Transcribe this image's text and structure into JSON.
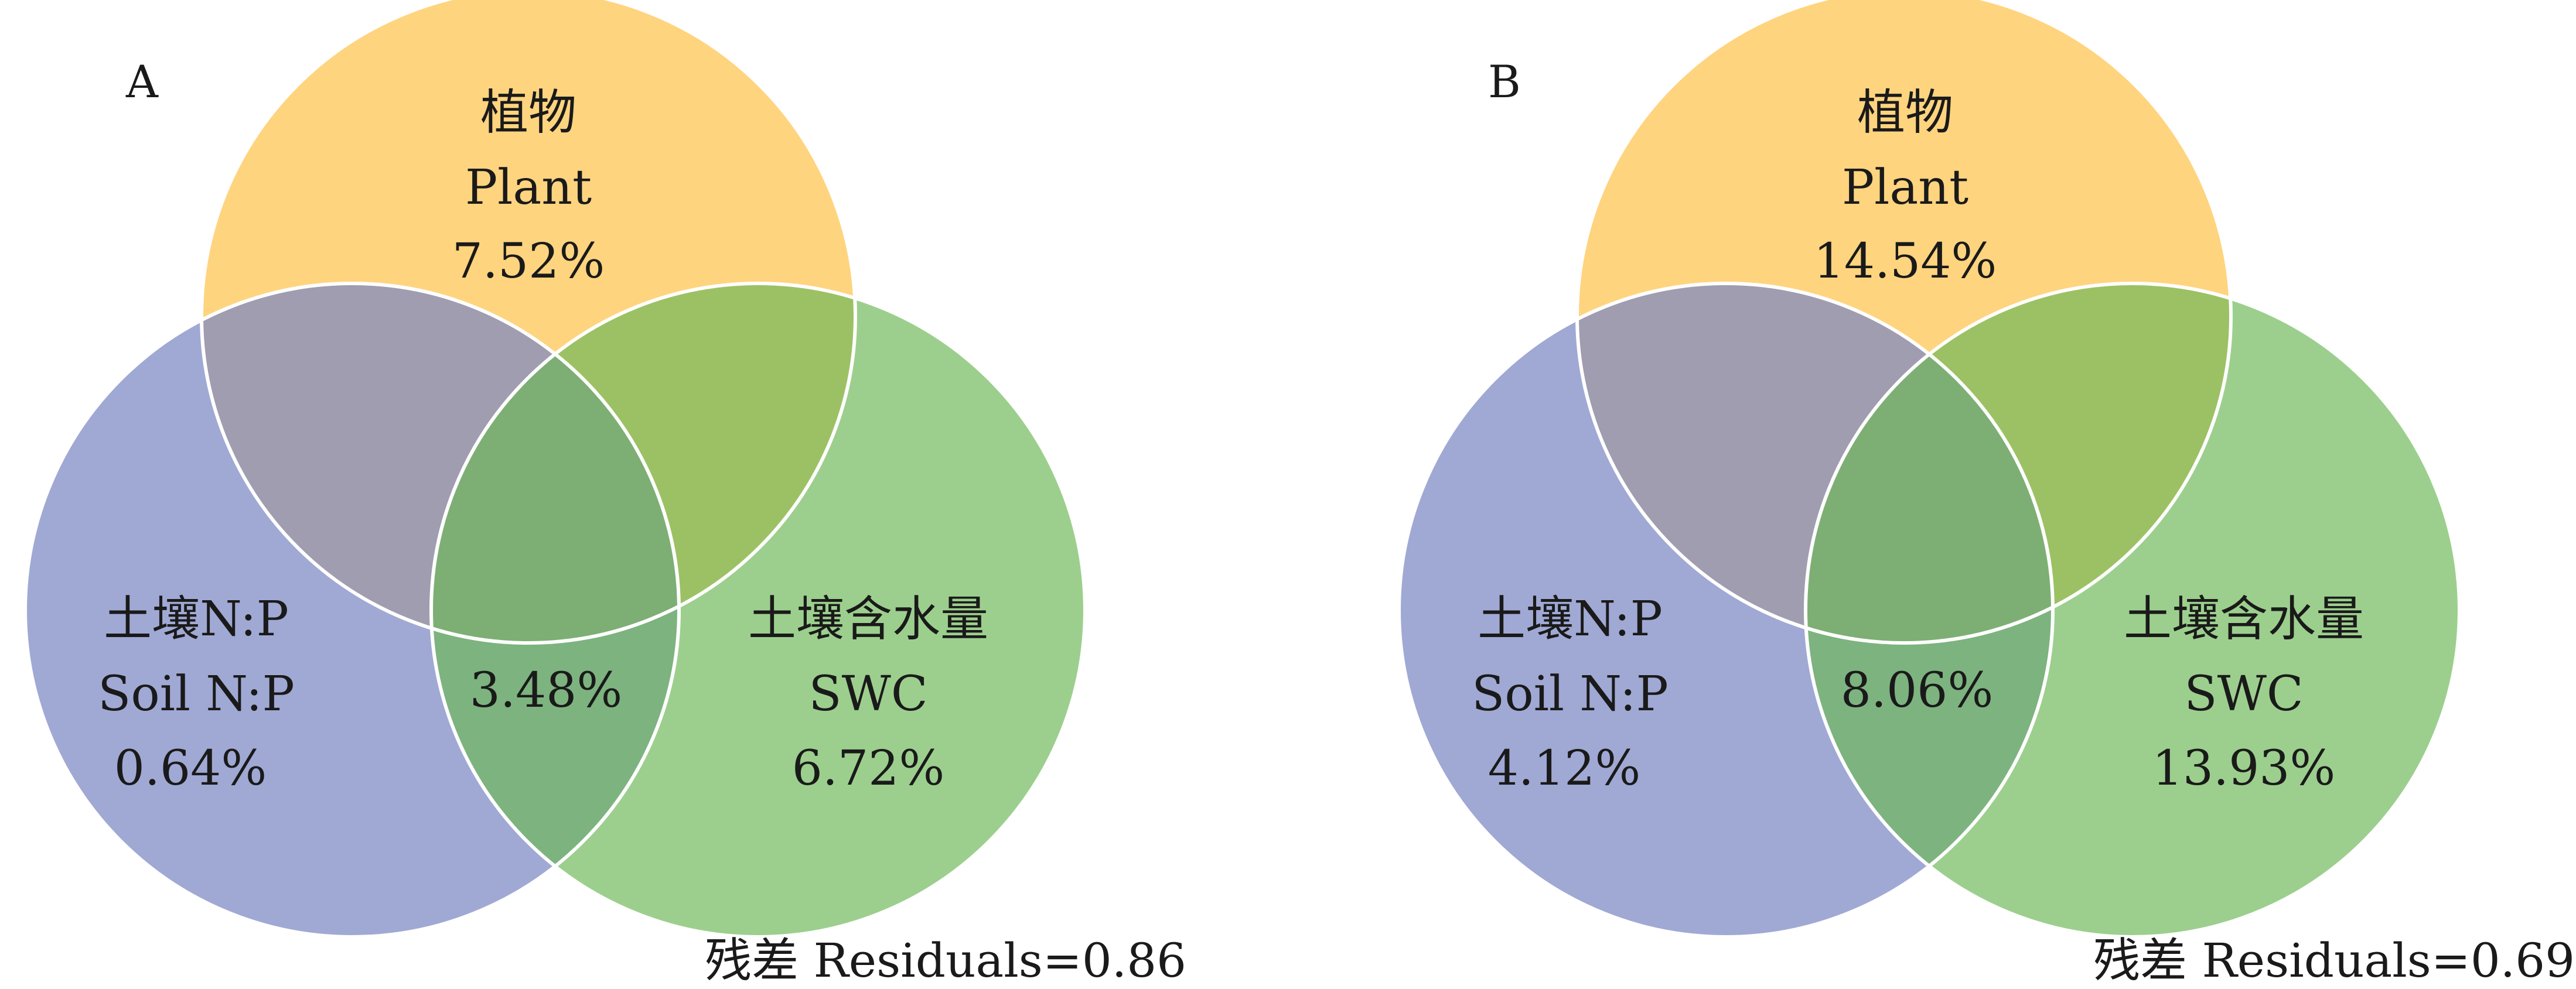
{
  "panels": [
    {
      "id": "A",
      "letter": "A",
      "plant": {
        "cn": "植物",
        "en": "Plant",
        "value": "7.52%"
      },
      "soil_np": {
        "cn": "土壤N:P",
        "en": "Soil N:P",
        "value": "0.64%"
      },
      "swc": {
        "cn": "土壤含水量",
        "en": "SWC",
        "value": "6.72%"
      },
      "shared": {
        "value": "3.48%"
      },
      "residuals": "残差 Residuals=0.86"
    },
    {
      "id": "B",
      "letter": "B",
      "plant": {
        "cn": "植物",
        "en": "Plant",
        "value": "14.54%"
      },
      "soil_np": {
        "cn": "土壤N:P",
        "en": "Soil N:P",
        "value": "4.12%"
      },
      "swc": {
        "cn": "土壤含水量",
        "en": "SWC",
        "value": "13.93%"
      },
      "shared": {
        "value": "8.06%"
      },
      "residuals": "残差 Residuals=0.69"
    }
  ],
  "colors": {
    "plant": "#FFC34D",
    "soil_np": "#7C88C4",
    "swc": "#6DB857",
    "outline": "#ffffff"
  }
}
